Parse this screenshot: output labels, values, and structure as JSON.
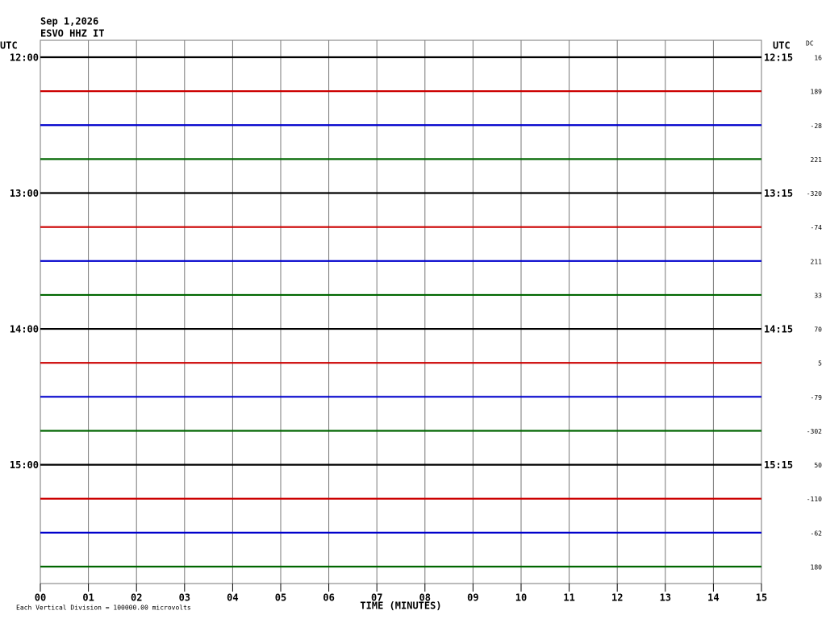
{
  "chart_data": {
    "type": "helicorder",
    "title": "Sep 1,2026",
    "subtitle": "ESVO HHZ IT",
    "left_axis_label": "UTC",
    "right_axis_label": "UTC",
    "dc_label": "DC",
    "xlabel": "TIME (MINUTES)",
    "note": "Each Vertical Division = 100000.00 microvolts",
    "xlim": [
      0,
      15
    ],
    "xticks": [
      {
        "value": 0,
        "label": "00"
      },
      {
        "value": 1,
        "label": "01"
      },
      {
        "value": 2,
        "label": "02"
      },
      {
        "value": 3,
        "label": "03"
      },
      {
        "value": 4,
        "label": "04"
      },
      {
        "value": 5,
        "label": "05"
      },
      {
        "value": 6,
        "label": "06"
      },
      {
        "value": 7,
        "label": "07"
      },
      {
        "value": 8,
        "label": "08"
      },
      {
        "value": 9,
        "label": "09"
      },
      {
        "value": 10,
        "label": "10"
      },
      {
        "value": 11,
        "label": "11"
      },
      {
        "value": 12,
        "label": "12"
      },
      {
        "value": 13,
        "label": "13"
      },
      {
        "value": 14,
        "label": "14"
      },
      {
        "value": 15,
        "label": "15"
      }
    ],
    "grid": true,
    "rows": [
      {
        "left_label": "12:00",
        "right_label": "12:15",
        "color": "#000000",
        "dc": 16
      },
      {
        "left_label": null,
        "right_label": null,
        "color": "#cc0000",
        "dc": 189
      },
      {
        "left_label": null,
        "right_label": null,
        "color": "#0000cc",
        "dc": -28
      },
      {
        "left_label": null,
        "right_label": null,
        "color": "#006600",
        "dc": 221
      },
      {
        "left_label": "13:00",
        "right_label": "13:15",
        "color": "#000000",
        "dc": -320
      },
      {
        "left_label": null,
        "right_label": null,
        "color": "#cc0000",
        "dc": -74
      },
      {
        "left_label": null,
        "right_label": null,
        "color": "#0000cc",
        "dc": 211
      },
      {
        "left_label": null,
        "right_label": null,
        "color": "#006600",
        "dc": 33
      },
      {
        "left_label": "14:00",
        "right_label": "14:15",
        "color": "#000000",
        "dc": 70
      },
      {
        "left_label": null,
        "right_label": null,
        "color": "#cc0000",
        "dc": 5
      },
      {
        "left_label": null,
        "right_label": null,
        "color": "#0000cc",
        "dc": -79
      },
      {
        "left_label": null,
        "right_label": null,
        "color": "#006600",
        "dc": -302
      },
      {
        "left_label": "15:00",
        "right_label": "15:15",
        "color": "#000000",
        "dc": 50
      },
      {
        "left_label": null,
        "right_label": null,
        "color": "#cc0000",
        "dc": -110
      },
      {
        "left_label": null,
        "right_label": null,
        "color": "#0000cc",
        "dc": -62
      },
      {
        "left_label": null,
        "right_label": null,
        "color": "#006600",
        "dc": 180
      }
    ]
  }
}
